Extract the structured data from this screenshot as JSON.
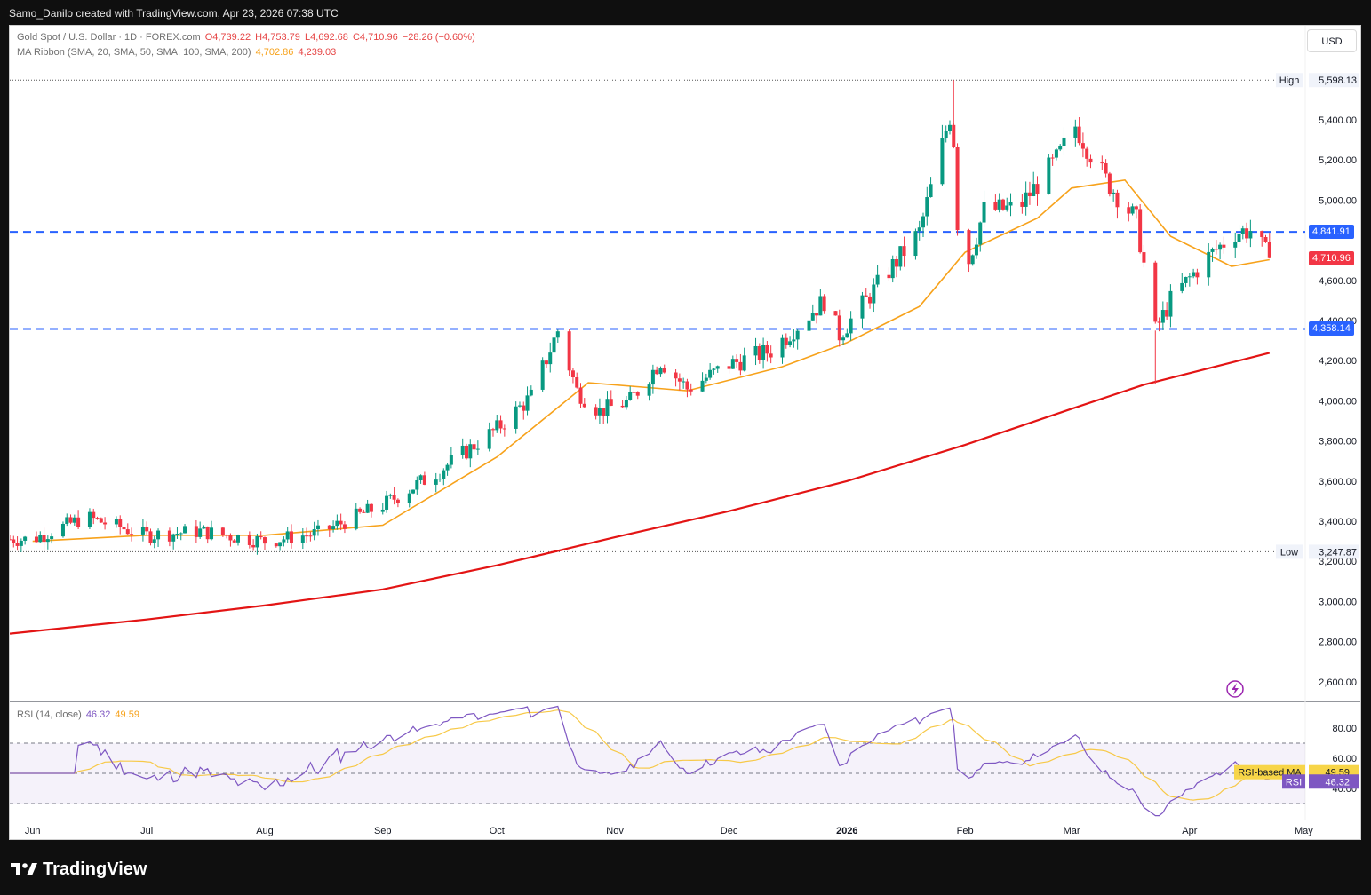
{
  "attribution": "Samo_Danilo created with TradingView.com, Apr 23, 2026 07:38 UTC",
  "brand": "TradingView",
  "currency_button": "USD",
  "legend": {
    "symbol": "Gold Spot / U.S. Dollar · 1D · FOREX.com",
    "open": "O4,739.22",
    "high": "H4,753.79",
    "low": "L4,692.68",
    "close": "C4,710.96",
    "change": "−28.26 (−0.60%)",
    "ma_label": "MA Ribbon (SMA, 20, SMA, 50, SMA, 100, SMA, 200)",
    "ma_value1": "4,702.86",
    "ma_value2": "4,239.03",
    "rsi_label": "RSI (14, close)",
    "rsi_value": "46.32",
    "rsi_ma_value": "49.59"
  },
  "price_axis": {
    "ticks": [
      "5,400.00",
      "5,200.00",
      "5,000.00",
      "4,600.00",
      "4,400.00",
      "4,200.00",
      "4,000.00",
      "3,800.00",
      "3,600.00",
      "3,400.00",
      "3,200.00",
      "3,000.00",
      "2,800.00",
      "2,600.00"
    ],
    "tick_values": [
      5400,
      5200,
      5000,
      4600,
      4400,
      4200,
      4000,
      3800,
      3600,
      3400,
      3200,
      3000,
      2800,
      2600
    ]
  },
  "markers": {
    "high_label": "High",
    "high_value": "5,598.13",
    "low_label": "Low",
    "low_value": "3,247.87",
    "level_upper": "4,841.91",
    "level_lower": "4,358.14",
    "last_price": "4,710.96"
  },
  "rsi_axis": {
    "ticks": [
      "80.00",
      "60.00",
      "40.00"
    ],
    "upper": "70",
    "middle": "50",
    "lower": "30"
  },
  "rsi_tags": {
    "ma_label": "RSI-based MA",
    "ma_value": "49.59",
    "rsi_label": "RSI",
    "rsi_value": "46.32"
  },
  "time_axis": [
    "Jun",
    "Jul",
    "Aug",
    "Sep",
    "Oct",
    "Nov",
    "Dec",
    "2026",
    "Feb",
    "Mar",
    "Apr",
    "May"
  ],
  "colors": {
    "up": "#089981",
    "down": "#f23645",
    "level": "#2962ff",
    "ma_fast": "#f7a21b",
    "ma_slow": "#e31414",
    "rsi": "#7e57c2",
    "rsi_ma": "#f7c948",
    "rsi_band": "#7e57c2",
    "rsi_fill": "#4caf50"
  },
  "chart_data": {
    "type": "candlestick",
    "title": "Gold Spot / U.S. Dollar · 1D · FOREX.com",
    "ylim": [
      2550,
      5700
    ],
    "x_range": [
      "2025-05-26",
      "2026-05-05"
    ],
    "hlines": [
      {
        "value": 4841.91,
        "style": "dashed"
      },
      {
        "value": 4358.14,
        "style": "dashed"
      }
    ],
    "high": 5598.13,
    "low": 3247.87,
    "last_close": 4710.96,
    "anchors": {
      "dates": [
        "2025-06-01",
        "2025-06-15",
        "2025-07-01",
        "2025-07-15",
        "2025-08-01",
        "2025-08-15",
        "2025-09-01",
        "2025-09-15",
        "2025-10-01",
        "2025-10-10",
        "2025-10-17",
        "2025-10-22",
        "2025-10-28",
        "2025-11-05",
        "2025-11-13",
        "2025-11-20",
        "2025-12-01",
        "2025-12-12",
        "2025-12-26",
        "2025-12-30",
        "2026-01-10",
        "2026-01-20",
        "2026-01-28",
        "2026-01-29",
        "2026-01-30",
        "2026-02-02",
        "2026-02-06",
        "2026-02-15",
        "2026-02-25",
        "2026-03-02",
        "2026-03-10",
        "2026-03-18",
        "2026-03-23",
        "2026-03-27",
        "2026-04-05",
        "2026-04-13",
        "2026-04-17",
        "2026-04-22"
      ],
      "closes": [
        3310,
        3420,
        3330,
        3350,
        3300,
        3340,
        3480,
        3640,
        3860,
        4020,
        4350,
        4050,
        3950,
        4000,
        4200,
        4060,
        4180,
        4250,
        4500,
        4330,
        4600,
        4840,
        5420,
        5300,
        4890,
        4700,
        4950,
        4960,
        5200,
        5370,
        5100,
        4900,
        4350,
        4500,
        4700,
        4840,
        4850,
        4711
      ]
    },
    "ma": [
      {
        "name": "SMA 20",
        "value": 4702.86,
        "dates": [
          "2025-06-01",
          "2025-07-01",
          "2025-08-01",
          "2025-09-01",
          "2025-10-01",
          "2025-10-25",
          "2025-11-20",
          "2025-12-15",
          "2026-01-01",
          "2026-01-20",
          "2026-02-01",
          "2026-02-20",
          "2026-03-01",
          "2026-03-15",
          "2026-03-27",
          "2026-04-12",
          "2026-04-22"
        ],
        "values": [
          3300,
          3330,
          3330,
          3380,
          3720,
          4090,
          4050,
          4170,
          4290,
          4470,
          4740,
          4910,
          5060,
          5100,
          4820,
          4670,
          4703
        ]
      },
      {
        "name": "SMA 200",
        "value": 4239.03,
        "dates": [
          "2025-05-26",
          "2025-07-01",
          "2025-08-01",
          "2025-09-01",
          "2025-10-01",
          "2025-11-01",
          "2025-12-01",
          "2026-01-01",
          "2026-02-01",
          "2026-03-01",
          "2026-03-20",
          "2026-04-22"
        ],
        "values": [
          2840,
          2910,
          2980,
          3060,
          3180,
          3320,
          3450,
          3600,
          3780,
          3960,
          4080,
          4239
        ]
      }
    ],
    "rsi": {
      "period": 14,
      "value": 46.32,
      "ma_value": 49.59,
      "ylim": [
        20,
        100
      ],
      "bands": [
        70,
        50,
        30
      ]
    }
  }
}
